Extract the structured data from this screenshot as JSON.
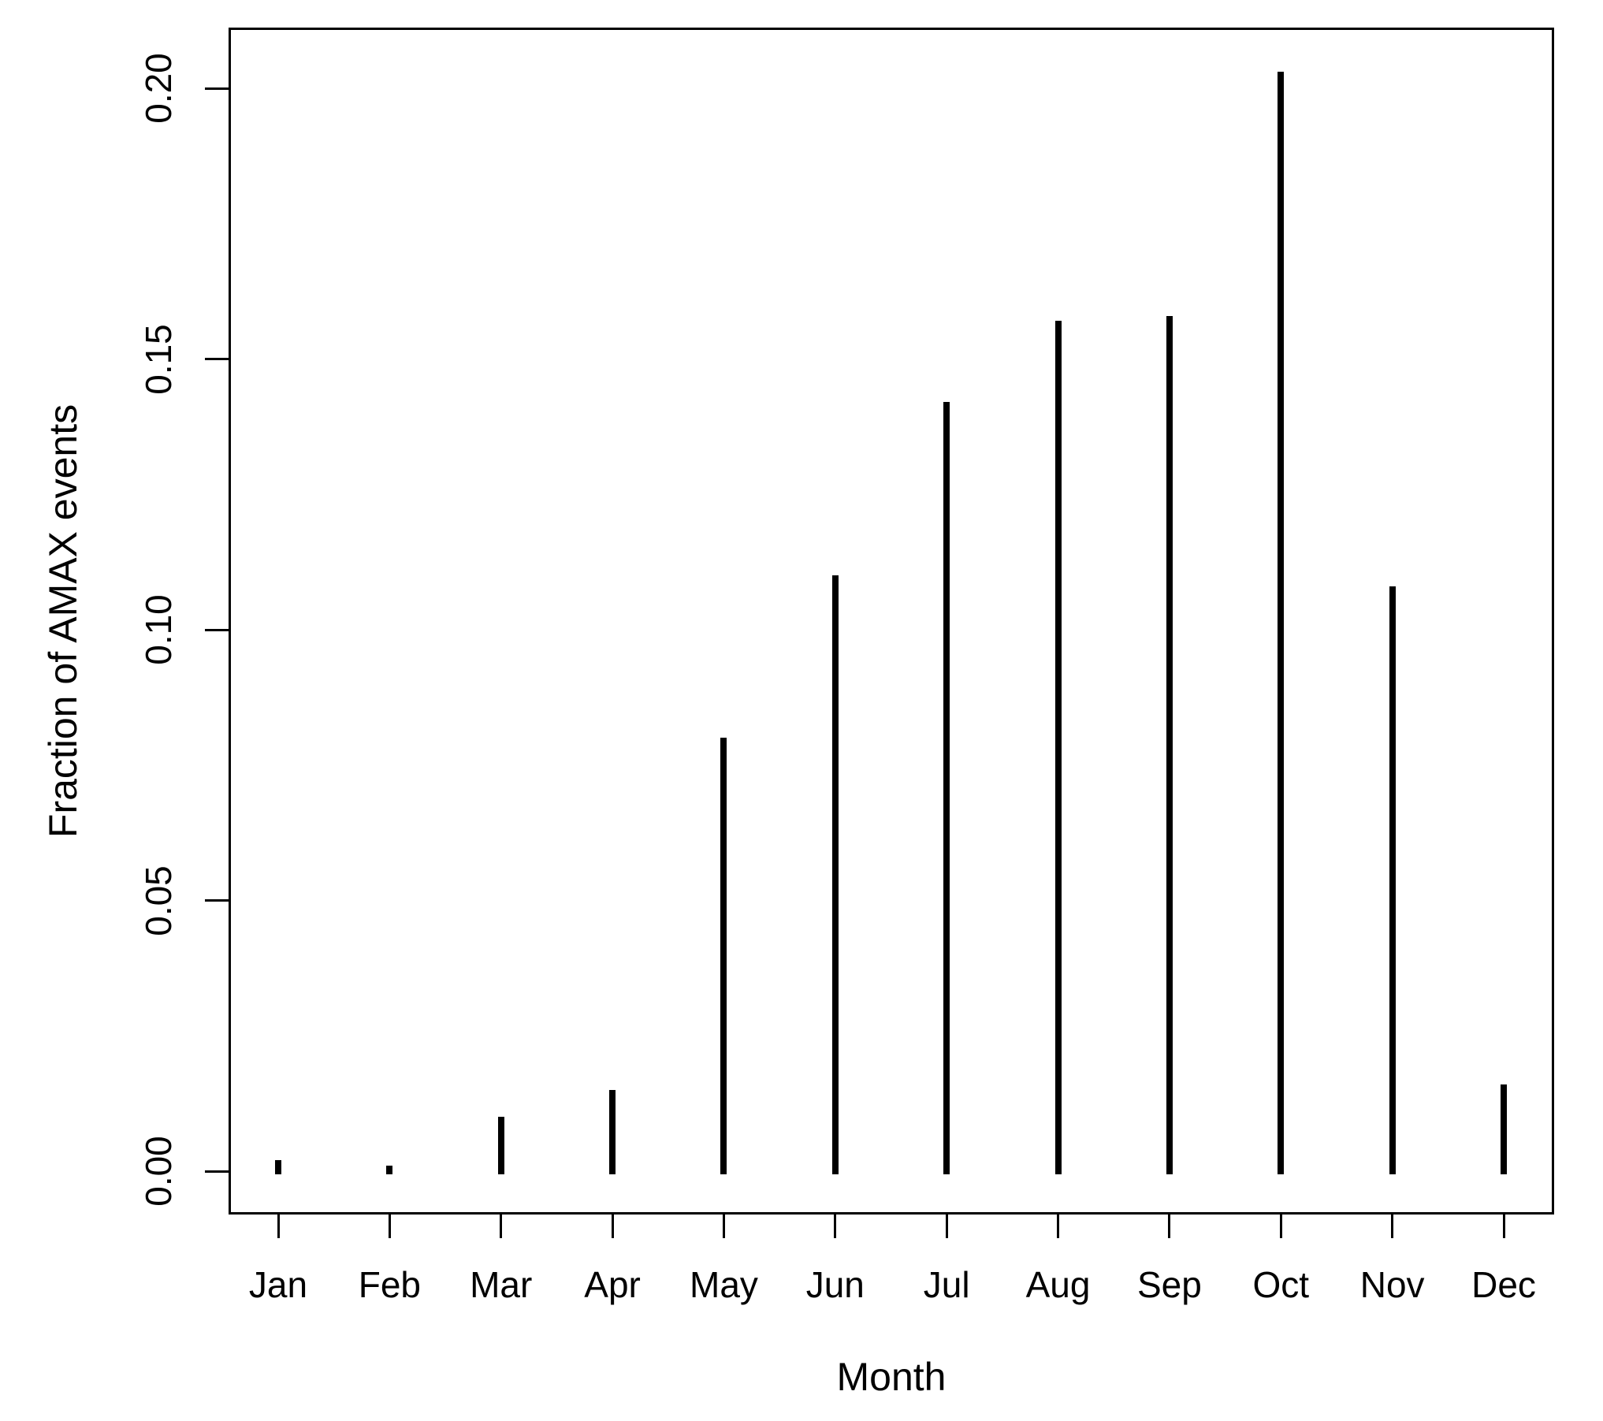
{
  "chart_data": {
    "type": "bar",
    "title": "",
    "xlabel": "Month",
    "ylabel": "Fraction of AMAX events",
    "categories": [
      "Jan",
      "Feb",
      "Mar",
      "Apr",
      "May",
      "Jun",
      "Jul",
      "Aug",
      "Sep",
      "Oct",
      "Nov",
      "Dec"
    ],
    "values": [
      0.002,
      0.001,
      0.01,
      0.015,
      0.08,
      0.11,
      0.142,
      0.157,
      0.158,
      0.203,
      0.108,
      0.016
    ],
    "ytick_labels": [
      "0.00",
      "0.05",
      "0.10",
      "0.15",
      "0.20"
    ],
    "ylim": [
      0,
      0.204
    ],
    "grid": false,
    "legend": false,
    "bar_style": "thin-vertical-spike",
    "colors": {
      "bar": "#000000",
      "axis": "#000000",
      "text": "#000000",
      "background": "#ffffff"
    }
  }
}
